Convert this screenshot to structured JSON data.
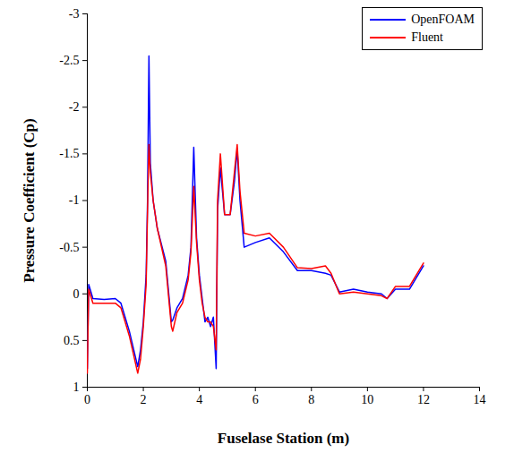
{
  "chart_data": {
    "type": "line",
    "x_label": "Fuselase Station (m)",
    "y_label": "Pressure Coefficient (Cp)",
    "xlim": [
      0,
      14
    ],
    "xticks": [
      0,
      2,
      4,
      6,
      8,
      10,
      12,
      14
    ],
    "ylim": [
      1,
      -3
    ],
    "yticks": [
      1,
      0.5,
      0,
      -0.5,
      -1,
      -1.5,
      -2,
      -2.5,
      -3
    ],
    "grid": false,
    "legend": "top-right",
    "x": [
      0,
      0.05,
      0.2,
      0.6,
      1.0,
      1.2,
      1.5,
      1.8,
      1.9,
      2.0,
      2.1,
      2.15,
      2.2,
      2.25,
      2.35,
      2.5,
      2.8,
      3.0,
      3.05,
      3.2,
      3.4,
      3.6,
      3.7,
      3.8,
      3.9,
      4.0,
      4.1,
      4.2,
      4.3,
      4.4,
      4.5,
      4.6,
      4.65,
      4.75,
      4.9,
      5.1,
      5.25,
      5.35,
      5.45,
      5.6,
      6.0,
      6.5,
      7.0,
      7.5,
      8.0,
      8.5,
      8.7,
      9.0,
      9.5,
      10.0,
      10.5,
      10.7,
      11.0,
      11.5,
      12.0
    ],
    "series": [
      {
        "name": "OpenFOAM",
        "color": "#0000ff",
        "values": [
          0.8,
          -0.1,
          0.05,
          0.06,
          0.05,
          0.1,
          0.4,
          0.78,
          0.6,
          0.3,
          -0.2,
          -1.0,
          -2.55,
          -1.4,
          -1.0,
          -0.7,
          -0.35,
          0.3,
          0.28,
          0.15,
          0.05,
          -0.2,
          -0.5,
          -1.57,
          -0.6,
          -0.2,
          0.05,
          0.3,
          0.25,
          0.35,
          0.25,
          0.8,
          -0.9,
          -1.35,
          -0.85,
          -0.85,
          -1.2,
          -1.55,
          -1.0,
          -0.5,
          -0.55,
          -0.6,
          -0.45,
          -0.25,
          -0.25,
          -0.22,
          -0.2,
          -0.02,
          -0.05,
          -0.02,
          0.0,
          0.05,
          -0.05,
          -0.05,
          -0.3
        ]
      },
      {
        "name": "Fluent",
        "color": "#ff0000",
        "values": [
          0.85,
          -0.05,
          0.1,
          0.1,
          0.1,
          0.15,
          0.45,
          0.85,
          0.7,
          0.35,
          -0.1,
          -0.9,
          -1.6,
          -1.3,
          -1.0,
          -0.7,
          -0.3,
          0.35,
          0.4,
          0.2,
          0.1,
          -0.15,
          -0.45,
          -1.15,
          -0.55,
          -0.15,
          0.1,
          0.25,
          0.3,
          0.3,
          0.35,
          0.6,
          -1.0,
          -1.5,
          -0.85,
          -0.85,
          -1.3,
          -1.6,
          -1.1,
          -0.65,
          -0.62,
          -0.65,
          -0.5,
          -0.28,
          -0.27,
          -0.3,
          -0.22,
          0.0,
          -0.02,
          0.0,
          0.02,
          0.05,
          -0.08,
          -0.08,
          -0.33
        ]
      }
    ]
  }
}
